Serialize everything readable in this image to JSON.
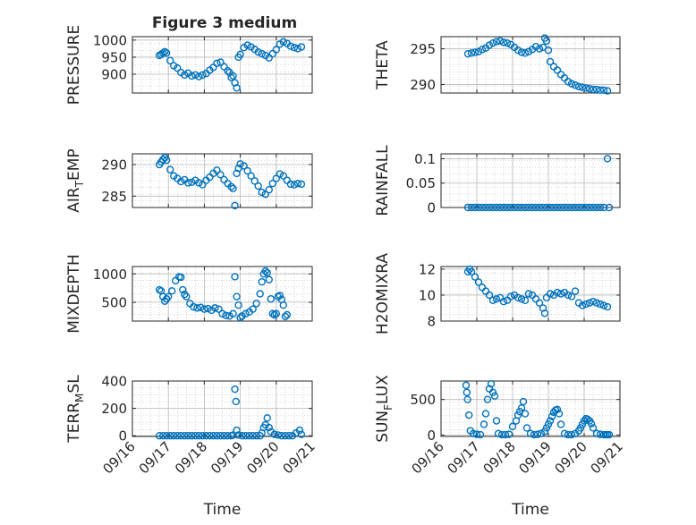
{
  "figure_title": "Figure 3 medium",
  "x_tick_labels": [
    "09/16",
    "09/17",
    "09/18",
    "09/19",
    "09/20",
    "09/21"
  ],
  "x_label": "Time",
  "colors": {
    "marker": "#0072BD",
    "grid": "#b8b8b8",
    "axis": "#262626"
  },
  "chart_data": [
    {
      "type": "scatter",
      "ylabel": "PRESSURE",
      "ylim": [
        845,
        1010
      ],
      "yticks": [
        900,
        950,
        1000
      ],
      "xlim": [
        0,
        5
      ],
      "x_tick_labels": [
        "09/16",
        "09/17",
        "09/18",
        "09/19",
        "09/20",
        "09/21"
      ],
      "x": [
        0.75,
        0.8,
        0.85,
        0.9,
        0.95,
        1.05,
        1.15,
        1.25,
        1.35,
        1.45,
        1.55,
        1.65,
        1.75,
        1.85,
        1.95,
        2.05,
        2.15,
        2.25,
        2.35,
        2.45,
        2.55,
        2.65,
        2.7,
        2.75,
        2.8,
        2.85,
        2.9,
        2.95,
        3.0,
        3.1,
        3.2,
        3.3,
        3.4,
        3.5,
        3.6,
        3.7,
        3.8,
        3.9,
        4.0,
        4.1,
        4.2,
        4.3,
        4.4,
        4.5,
        4.6,
        4.7
      ],
      "y": [
        955,
        958,
        962,
        966,
        962,
        940,
        925,
        918,
        905,
        898,
        903,
        895,
        898,
        893,
        898,
        902,
        912,
        920,
        932,
        935,
        922,
        910,
        905,
        890,
        895,
        875,
        860,
        950,
        958,
        978,
        985,
        980,
        973,
        965,
        960,
        955,
        948,
        960,
        972,
        988,
        995,
        990,
        982,
        978,
        975,
        980
      ]
    },
    {
      "type": "scatter",
      "ylabel": "THETA",
      "ylim": [
        288.8,
        296.7
      ],
      "yticks": [
        290,
        295
      ],
      "xlim": [
        0,
        5
      ],
      "x_tick_labels": [
        "09/16",
        "09/17",
        "09/18",
        "09/19",
        "09/20",
        "09/21"
      ],
      "x": [
        0.75,
        0.85,
        0.95,
        1.05,
        1.15,
        1.25,
        1.35,
        1.45,
        1.55,
        1.65,
        1.75,
        1.85,
        1.95,
        2.05,
        2.15,
        2.25,
        2.35,
        2.45,
        2.55,
        2.65,
        2.75,
        2.85,
        2.9,
        2.95,
        3.0,
        3.05,
        3.15,
        3.25,
        3.35,
        3.45,
        3.55,
        3.65,
        3.75,
        3.85,
        3.95,
        4.05,
        4.15,
        4.25,
        4.35,
        4.45,
        4.55,
        4.65
      ],
      "y": [
        294.3,
        294.4,
        294.5,
        294.6,
        294.9,
        295.1,
        295.5,
        295.8,
        296.0,
        296.1,
        295.9,
        295.8,
        295.6,
        295.2,
        294.8,
        294.5,
        294.4,
        294.6,
        294.9,
        295.3,
        295.0,
        295.2,
        296.5,
        296.1,
        294.8,
        293.2,
        292.5,
        292.0,
        291.4,
        290.9,
        290.4,
        290.1,
        289.9,
        289.7,
        289.6,
        289.5,
        289.4,
        289.3,
        289.3,
        289.2,
        289.2,
        289.1
      ]
    },
    {
      "type": "scatter",
      "ylabel": "AIR_TEMP",
      "ylim": [
        283.2,
        291.7
      ],
      "yticks": [
        285,
        290
      ],
      "xlim": [
        0,
        5
      ],
      "x_tick_labels": [
        "09/16",
        "09/17",
        "09/18",
        "09/19",
        "09/20",
        "09/21"
      ],
      "x": [
        0.75,
        0.8,
        0.85,
        0.9,
        0.95,
        1.05,
        1.15,
        1.25,
        1.35,
        1.45,
        1.55,
        1.65,
        1.75,
        1.85,
        1.95,
        2.05,
        2.15,
        2.25,
        2.35,
        2.45,
        2.55,
        2.65,
        2.75,
        2.8,
        2.85,
        2.9,
        2.95,
        3.0,
        3.1,
        3.2,
        3.3,
        3.4,
        3.5,
        3.6,
        3.7,
        3.8,
        3.9,
        4.0,
        4.1,
        4.2,
        4.3,
        4.4,
        4.5,
        4.6,
        4.7
      ],
      "y": [
        290.0,
        290.4,
        290.8,
        291.1,
        290.7,
        289.2,
        288.2,
        287.8,
        287.3,
        287.6,
        287.1,
        287.2,
        287.5,
        287.1,
        286.8,
        287.5,
        288.0,
        288.6,
        289.1,
        288.4,
        287.6,
        287.0,
        286.5,
        286.2,
        283.5,
        288.6,
        289.4,
        290.1,
        289.8,
        289.0,
        288.2,
        287.4,
        286.6,
        285.6,
        285.3,
        286.0,
        287.0,
        287.8,
        288.5,
        288.2,
        287.5,
        286.9,
        286.8,
        287.0,
        286.9
      ]
    },
    {
      "type": "scatter",
      "ylabel": "RAINFALL",
      "ylim": [
        0,
        0.11
      ],
      "yticks": [
        0,
        0.05,
        0.1
      ],
      "tick_labels": [
        "0",
        "0.05",
        "0.1"
      ],
      "xlim": [
        0,
        5
      ],
      "x_tick_labels": [
        "09/16",
        "09/17",
        "09/18",
        "09/19",
        "09/20",
        "09/21"
      ],
      "x": [
        0.75,
        0.85,
        0.95,
        1.05,
        1.15,
        1.25,
        1.35,
        1.45,
        1.55,
        1.65,
        1.75,
        1.85,
        1.95,
        2.05,
        2.15,
        2.25,
        2.35,
        2.45,
        2.55,
        2.65,
        2.75,
        2.85,
        2.95,
        3.05,
        3.15,
        3.25,
        3.35,
        3.45,
        3.55,
        3.65,
        3.75,
        3.85,
        3.95,
        4.05,
        4.15,
        4.25,
        4.35,
        4.45,
        4.55,
        4.65,
        4.7
      ],
      "y": [
        0,
        0,
        0,
        0,
        0,
        0,
        0,
        0,
        0,
        0,
        0,
        0,
        0,
        0,
        0,
        0,
        0,
        0,
        0,
        0,
        0,
        0,
        0,
        0,
        0,
        0,
        0,
        0,
        0,
        0,
        0,
        0,
        0,
        0,
        0,
        0,
        0,
        0,
        0,
        0.1,
        0
      ]
    },
    {
      "type": "scatter",
      "ylabel": "MIXDEPTH",
      "ylim": [
        170,
        1130
      ],
      "yticks": [
        500,
        1000
      ],
      "xlim": [
        0,
        5
      ],
      "x_tick_labels": [
        "09/16",
        "09/17",
        "09/18",
        "09/19",
        "09/20",
        "09/21"
      ],
      "x": [
        0.75,
        0.8,
        0.85,
        0.9,
        0.95,
        1.0,
        1.1,
        1.2,
        1.3,
        1.35,
        1.4,
        1.45,
        1.5,
        1.6,
        1.7,
        1.8,
        1.9,
        2.0,
        2.1,
        2.2,
        2.3,
        2.4,
        2.5,
        2.6,
        2.7,
        2.8,
        2.85,
        2.9,
        2.95,
        3.0,
        3.05,
        3.15,
        3.25,
        3.35,
        3.45,
        3.55,
        3.6,
        3.65,
        3.7,
        3.75,
        3.8,
        3.85,
        3.9,
        3.95,
        4.0,
        4.05,
        4.1,
        4.15,
        4.2,
        4.25,
        4.3
      ],
      "y": [
        720,
        700,
        600,
        520,
        560,
        600,
        700,
        880,
        950,
        940,
        720,
        640,
        600,
        480,
        420,
        400,
        410,
        380,
        390,
        360,
        400,
        380,
        300,
        270,
        260,
        300,
        950,
        600,
        450,
        230,
        260,
        300,
        330,
        380,
        480,
        650,
        860,
        1000,
        1050,
        1020,
        900,
        560,
        300,
        280,
        300,
        600,
        620,
        550,
        450,
        250,
        280
      ]
    },
    {
      "type": "scatter",
      "ylabel": "H2OMIXRA",
      "ylim": [
        8,
        12.2
      ],
      "yticks": [
        8,
        10,
        12
      ],
      "xlim": [
        0,
        5
      ],
      "x_tick_labels": [
        "09/16",
        "09/17",
        "09/18",
        "09/19",
        "09/20",
        "09/21"
      ],
      "x": [
        0.75,
        0.8,
        0.85,
        0.95,
        1.05,
        1.15,
        1.25,
        1.35,
        1.45,
        1.55,
        1.65,
        1.75,
        1.85,
        1.95,
        2.05,
        2.15,
        2.25,
        2.35,
        2.45,
        2.55,
        2.65,
        2.75,
        2.85,
        2.9,
        2.95,
        3.05,
        3.15,
        3.25,
        3.35,
        3.45,
        3.55,
        3.65,
        3.75,
        3.85,
        3.95,
        4.05,
        4.15,
        4.25,
        4.35,
        4.45,
        4.55,
        4.65
      ],
      "y": [
        11.8,
        12.0,
        11.8,
        11.4,
        11.0,
        10.6,
        10.3,
        10.0,
        9.6,
        9.7,
        9.8,
        9.5,
        9.6,
        9.9,
        10.0,
        9.8,
        9.7,
        9.6,
        10.1,
        10.0,
        9.7,
        9.4,
        9.0,
        8.6,
        9.8,
        10.1,
        10.0,
        10.2,
        10.1,
        10.2,
        10.0,
        9.9,
        10.3,
        9.4,
        9.2,
        9.3,
        9.4,
        9.5,
        9.4,
        9.3,
        9.2,
        9.1
      ]
    },
    {
      "type": "scatter",
      "ylabel": "TERR_MSL",
      "ylim": [
        -5,
        400
      ],
      "yticks": [
        0,
        200,
        400
      ],
      "xlim": [
        0,
        5
      ],
      "x_tick_labels": [
        "09/16",
        "09/17",
        "09/18",
        "09/19",
        "09/20",
        "09/21"
      ],
      "x": [
        0.75,
        0.85,
        0.95,
        1.05,
        1.15,
        1.25,
        1.35,
        1.45,
        1.55,
        1.65,
        1.75,
        1.85,
        1.95,
        2.05,
        2.15,
        2.25,
        2.35,
        2.45,
        2.55,
        2.65,
        2.75,
        2.8,
        2.85,
        2.88,
        2.9,
        2.95,
        3.05,
        3.15,
        3.25,
        3.35,
        3.45,
        3.55,
        3.6,
        3.65,
        3.7,
        3.75,
        3.8,
        3.85,
        3.95,
        4.05,
        4.15,
        4.25,
        4.35,
        4.45,
        4.55,
        4.65,
        4.7
      ],
      "y": [
        0,
        0,
        0,
        0,
        0,
        0,
        0,
        0,
        0,
        0,
        0,
        0,
        0,
        0,
        0,
        0,
        0,
        0,
        0,
        0,
        0,
        5,
        340,
        250,
        40,
        5,
        0,
        0,
        0,
        0,
        0,
        0,
        20,
        60,
        80,
        130,
        60,
        30,
        10,
        5,
        0,
        0,
        0,
        0,
        20,
        40,
        10
      ]
    },
    {
      "type": "scatter",
      "ylabel": "SUN_FLUX",
      "ylim": [
        -20,
        760
      ],
      "yticks": [
        0,
        500
      ],
      "xlim": [
        0,
        5
      ],
      "x_tick_labels": [
        "09/16",
        "09/17",
        "09/18",
        "09/19",
        "09/20",
        "09/21"
      ],
      "x": [
        0.7,
        0.72,
        0.74,
        0.78,
        0.82,
        0.9,
        1.0,
        1.1,
        1.2,
        1.25,
        1.3,
        1.35,
        1.4,
        1.45,
        1.5,
        1.55,
        1.6,
        1.7,
        1.8,
        1.9,
        2.0,
        2.1,
        2.15,
        2.2,
        2.25,
        2.3,
        2.35,
        2.4,
        2.5,
        2.6,
        2.7,
        2.8,
        2.9,
        2.95,
        3.0,
        3.05,
        3.1,
        3.15,
        3.2,
        3.25,
        3.3,
        3.35,
        3.45,
        3.55,
        3.65,
        3.75,
        3.85,
        3.9,
        3.95,
        4.0,
        4.05,
        4.1,
        4.15,
        4.2,
        4.25,
        4.35,
        4.45,
        4.55,
        4.6,
        4.65,
        4.7
      ],
      "y": [
        700,
        600,
        500,
        280,
        60,
        20,
        10,
        5,
        150,
        300,
        500,
        650,
        720,
        600,
        550,
        200,
        20,
        5,
        5,
        10,
        120,
        200,
        280,
        330,
        380,
        470,
        300,
        100,
        20,
        5,
        10,
        20,
        50,
        100,
        150,
        200,
        260,
        320,
        350,
        360,
        300,
        150,
        20,
        5,
        5,
        20,
        60,
        100,
        150,
        200,
        230,
        220,
        200,
        160,
        100,
        20,
        10,
        5,
        5,
        5,
        5
      ]
    }
  ]
}
